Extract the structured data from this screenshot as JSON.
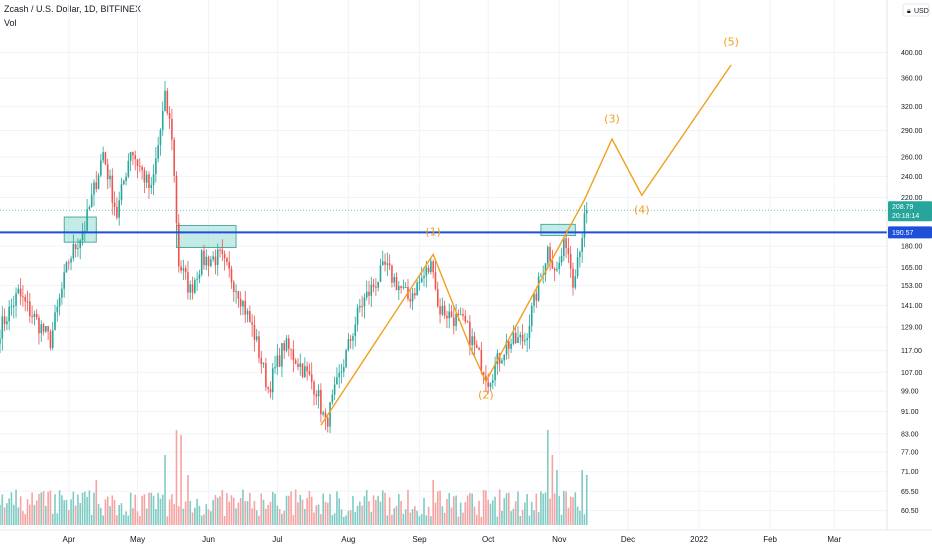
{
  "header": {
    "title": "Zcash / U.S. Dollar, 1D, BITFINEX",
    "sub": "Vol"
  },
  "currency_label": "USD",
  "colors": {
    "up": "#26a69a",
    "down": "#ef5350",
    "up_vol": "#80cbc4",
    "down_vol": "#f5a3a3",
    "wave": "#f0a020",
    "hline": "#1e4fd8",
    "box": "#7fd3c8",
    "price_tag": "#26a69a",
    "level_tag": "#1e4fd8"
  },
  "chart_data": {
    "type": "candlestick",
    "y_scale": "log",
    "ylim": [
      57,
      450
    ],
    "y_ticks": [
      {
        "v": 400,
        "label": "400.00"
      },
      {
        "v": 360,
        "label": "360.00"
      },
      {
        "v": 320,
        "label": "320.00"
      },
      {
        "v": 290,
        "label": "290.00"
      },
      {
        "v": 260,
        "label": "260.00"
      },
      {
        "v": 240,
        "label": "240.00"
      },
      {
        "v": 220,
        "label": "220.00"
      },
      {
        "v": 180,
        "label": "180.00"
      },
      {
        "v": 165,
        "label": "165.00"
      },
      {
        "v": 153,
        "label": "153.00"
      },
      {
        "v": 141,
        "label": "141.00"
      },
      {
        "v": 129,
        "label": "129.00"
      },
      {
        "v": 117,
        "label": "117.00"
      },
      {
        "v": 107,
        "label": "107.00"
      },
      {
        "v": 99,
        "label": "99.00"
      },
      {
        "v": 91,
        "label": "91.00"
      },
      {
        "v": 83,
        "label": "83.00"
      },
      {
        "v": 77,
        "label": "77.00"
      },
      {
        "v": 71,
        "label": "71.00"
      },
      {
        "v": 65.5,
        "label": "65.50"
      },
      {
        "v": 60.5,
        "label": "60.50"
      }
    ],
    "x_range": [
      "2021-03-02",
      "2022-03-24"
    ],
    "x_ticks": [
      {
        "d": "2021-04-01",
        "label": "Apr"
      },
      {
        "d": "2021-05-01",
        "label": "May"
      },
      {
        "d": "2021-06-01",
        "label": "Jun"
      },
      {
        "d": "2021-07-01",
        "label": "Jul"
      },
      {
        "d": "2021-08-01",
        "label": "Aug"
      },
      {
        "d": "2021-09-01",
        "label": "Sep"
      },
      {
        "d": "2021-10-01",
        "label": "Oct"
      },
      {
        "d": "2021-11-01",
        "label": "Nov"
      },
      {
        "d": "2021-12-01",
        "label": "Dec"
      },
      {
        "d": "2022-01-01",
        "label": "2022"
      },
      {
        "d": "2022-02-01",
        "label": "Feb"
      },
      {
        "d": "2022-03-01",
        "label": "Mar"
      }
    ],
    "last_price": {
      "value": 208.79,
      "label": "208.79",
      "countdown": "20:18:14"
    },
    "horizontal_level": {
      "value": 190.57,
      "label": "190.57"
    },
    "zones": [
      {
        "d0": "2021-03-30",
        "d1": "2021-04-13",
        "y0": 183,
        "y1": 203
      },
      {
        "d0": "2021-05-18",
        "d1": "2021-06-13",
        "y0": 179,
        "y1": 196
      },
      {
        "d0": "2021-10-24",
        "d1": "2021-11-08",
        "y0": 188,
        "y1": 197
      }
    ],
    "wave_path": [
      {
        "d": "2021-07-20",
        "p": 86
      },
      {
        "d": "2021-09-07",
        "p": 174
      },
      {
        "d": "2021-09-23",
        "p": 119
      },
      {
        "d": "2021-09-30",
        "p": 103
      },
      {
        "d": "2021-11-12",
        "p": 218
      },
      {
        "d": "2021-11-24",
        "p": 280
      },
      {
        "d": "2021-12-07",
        "p": 222
      },
      {
        "d": "2022-01-15",
        "p": 380
      }
    ],
    "wave_labels": [
      {
        "d": "2021-09-07",
        "p": 188,
        "label": "(1)"
      },
      {
        "d": "2021-09-30",
        "p": 96,
        "label": "(2)"
      },
      {
        "d": "2021-11-24",
        "p": 300,
        "label": "(3)"
      },
      {
        "d": "2021-12-07",
        "p": 206,
        "label": "(4)"
      },
      {
        "d": "2022-01-15",
        "p": 412,
        "label": "(5)"
      }
    ],
    "price_anchors": [
      {
        "d": "2021-03-02",
        "p": 128
      },
      {
        "d": "2021-03-10",
        "p": 148
      },
      {
        "d": "2021-03-18",
        "p": 132
      },
      {
        "d": "2021-03-24",
        "p": 122
      },
      {
        "d": "2021-04-01",
        "p": 170
      },
      {
        "d": "2021-04-08",
        "p": 195
      },
      {
        "d": "2021-04-16",
        "p": 265
      },
      {
        "d": "2021-04-22",
        "p": 205
      },
      {
        "d": "2021-04-28",
        "p": 270
      },
      {
        "d": "2021-05-07",
        "p": 225
      },
      {
        "d": "2021-05-13",
        "p": 330
      },
      {
        "d": "2021-05-16",
        "p": 285
      },
      {
        "d": "2021-05-19",
        "p": 168
      },
      {
        "d": "2021-05-24",
        "p": 150
      },
      {
        "d": "2021-05-29",
        "p": 170
      },
      {
        "d": "2021-06-06",
        "p": 172
      },
      {
        "d": "2021-06-14",
        "p": 150
      },
      {
        "d": "2021-06-21",
        "p": 125
      },
      {
        "d": "2021-06-27",
        "p": 100
      },
      {
        "d": "2021-07-04",
        "p": 120
      },
      {
        "d": "2021-07-10",
        "p": 112
      },
      {
        "d": "2021-07-18",
        "p": 100
      },
      {
        "d": "2021-07-22",
        "p": 86
      },
      {
        "d": "2021-08-06",
        "p": 140
      },
      {
        "d": "2021-08-17",
        "p": 165
      },
      {
        "d": "2021-08-27",
        "p": 145
      },
      {
        "d": "2021-09-07",
        "p": 168
      },
      {
        "d": "2021-09-09",
        "p": 140
      },
      {
        "d": "2021-09-21",
        "p": 130
      },
      {
        "d": "2021-10-01",
        "p": 104
      },
      {
        "d": "2021-10-09",
        "p": 120
      },
      {
        "d": "2021-10-17",
        "p": 123
      },
      {
        "d": "2021-10-27",
        "p": 178
      },
      {
        "d": "2021-10-31",
        "p": 162
      },
      {
        "d": "2021-11-04",
        "p": 185
      },
      {
        "d": "2021-11-07",
        "p": 158
      },
      {
        "d": "2021-11-13",
        "p": 208.79
      }
    ],
    "volume_spikes": [
      {
        "d": "2021-05-18",
        "v": 0.95
      },
      {
        "d": "2021-05-20",
        "v": 0.9
      },
      {
        "d": "2021-05-13",
        "v": 0.7
      },
      {
        "d": "2021-05-23",
        "v": 0.5
      },
      {
        "d": "2021-10-27",
        "v": 0.95
      },
      {
        "d": "2021-10-29",
        "v": 0.7
      },
      {
        "d": "2021-10-31",
        "v": 0.55
      },
      {
        "d": "2021-11-11",
        "v": 0.55
      },
      {
        "d": "2021-11-13",
        "v": 0.5
      },
      {
        "d": "2021-09-07",
        "v": 0.45
      },
      {
        "d": "2021-04-13",
        "v": 0.45
      }
    ]
  }
}
